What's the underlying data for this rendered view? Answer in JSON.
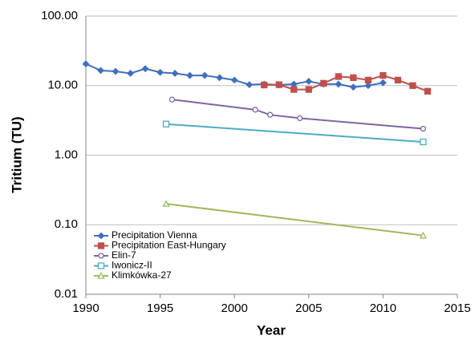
{
  "chart_data": {
    "type": "line",
    "xlabel": "Year",
    "ylabel": "Tritium (TU)",
    "log_y": true,
    "grid": true,
    "legend": "lower left",
    "xlim": [
      1990,
      2015
    ],
    "xticks": [
      1990,
      1995,
      2000,
      2005,
      2010,
      2015
    ],
    "ylim": [
      0.01,
      100
    ],
    "yticks": [
      {
        "value": 0.01,
        "label": "0.01"
      },
      {
        "value": 0.1,
        "label": "0.10"
      },
      {
        "value": 1,
        "label": "1.00"
      },
      {
        "value": 10,
        "label": "10.00"
      },
      {
        "value": 100,
        "label": "100.00"
      }
    ],
    "series": [
      {
        "name": "Precipitation Vienna",
        "color": "#3f6fbf",
        "marker": "diamond",
        "x": [
          1990,
          1991,
          1992,
          1993,
          1994,
          1995,
          1996,
          1997,
          1998,
          1999,
          2000,
          2001,
          2002,
          2003,
          2004,
          2005,
          2006,
          2007,
          2008,
          2009,
          2010
        ],
        "values": [
          20.5,
          16.5,
          16,
          15,
          17.5,
          15.5,
          15,
          14,
          14,
          13,
          12,
          10.3,
          10.5,
          10.2,
          10.5,
          11.5,
          10.5,
          10.5,
          9.5,
          10,
          11
        ]
      },
      {
        "name": "Precipitation East-Hungary",
        "color": "#c0504d",
        "marker": "square",
        "x": [
          2002,
          2003,
          2004,
          2005,
          2006,
          2007,
          2008,
          2009,
          2010,
          2011,
          2012,
          2013
        ],
        "values": [
          10.2,
          10.3,
          8.8,
          8.8,
          10.8,
          13.5,
          13,
          12,
          14,
          12,
          10,
          8.3
        ]
      },
      {
        "name": "Elin-7",
        "color": "#8064a2",
        "marker": "circle-open",
        "x": [
          1995.8,
          2001.4,
          2002.4,
          2004.4,
          2012.7
        ],
        "values": [
          6.3,
          4.5,
          3.8,
          3.4,
          2.4
        ]
      },
      {
        "name": "Iwonicz-II",
        "color": "#4bacc6",
        "marker": "square-open",
        "x": [
          1995.4,
          2012.7
        ],
        "values": [
          2.8,
          1.55
        ]
      },
      {
        "name": "Klimkówka-27",
        "color": "#9bbb59",
        "marker": "triangle-open",
        "x": [
          1995.4,
          2012.7
        ],
        "values": [
          0.2,
          0.07
        ]
      }
    ]
  }
}
